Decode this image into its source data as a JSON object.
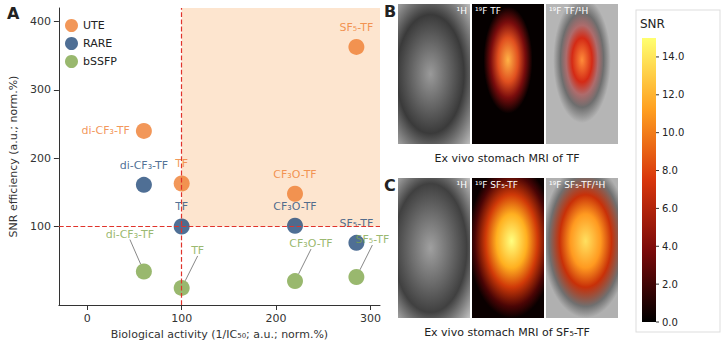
{
  "chart_data": {
    "type": "scatter",
    "title": "A",
    "xlabel": "Biological activity (1/IC₅₀; a.u.; norm.%)",
    "ylabel": "SNR efficiency (a.u.; norm.%)",
    "xlim": [
      -30,
      310
    ],
    "xticks": [
      0,
      100,
      200,
      300
    ],
    "ylim": [
      -15,
      420
    ],
    "yticks": [
      100,
      200,
      300,
      400
    ],
    "grid": false,
    "legend": "upper left",
    "marker": "circle",
    "threshold_x": 100,
    "threshold_y": 100,
    "series": [
      {
        "name": "UTE",
        "color": "#ef7d2f",
        "x": [
          60,
          100,
          220,
          285
        ],
        "values": [
          240,
          163,
          148,
          363
        ],
        "labels": [
          "di-CF₃-TF",
          "TF",
          "CF₃O-TF",
          "SF₅-TF"
        ]
      },
      {
        "name": "RARE",
        "color": "#234b7a",
        "x": [
          60,
          100,
          220,
          285
        ],
        "values": [
          161,
          100,
          101,
          76
        ],
        "labels": [
          "di-CF₃-TF",
          "TF",
          "CF₃O-TF",
          "SF₅-TF"
        ]
      },
      {
        "name": "bSSFP",
        "color": "#7fa64a",
        "x": [
          60,
          100,
          220,
          285
        ],
        "values": [
          34,
          10,
          20,
          26
        ],
        "labels": [
          "di-CF₃-TF",
          "TF",
          "CF₃O-TF",
          "SF₅-TF"
        ]
      }
    ]
  },
  "panels": [
    {
      "label": "B",
      "image_labels": [
        "¹H",
        "¹⁹F TF",
        "¹⁹F TF/¹H"
      ],
      "caption": "Ex vivo stomach MRI of TF"
    },
    {
      "label": "C",
      "image_labels": [
        "¹H",
        "¹⁹F SF₅-TF",
        "¹⁹F SF₅-TF/¹H"
      ],
      "caption": "Ex vivo stomach MRI of SF₅-TF"
    }
  ],
  "colorbar": {
    "title": "SNR",
    "range": [
      0,
      15
    ],
    "ticks": [
      {
        "value": 0,
        "label": "0.0"
      },
      {
        "value": 2,
        "label": "2.0"
      },
      {
        "value": 4,
        "label": "4.0"
      },
      {
        "value": 6,
        "label": "6.0"
      },
      {
        "value": 8,
        "label": "8.0"
      },
      {
        "value": 10,
        "label": "10.0"
      },
      {
        "value": 12,
        "label": "12.0"
      },
      {
        "value": 14,
        "label": "14.0"
      }
    ]
  }
}
